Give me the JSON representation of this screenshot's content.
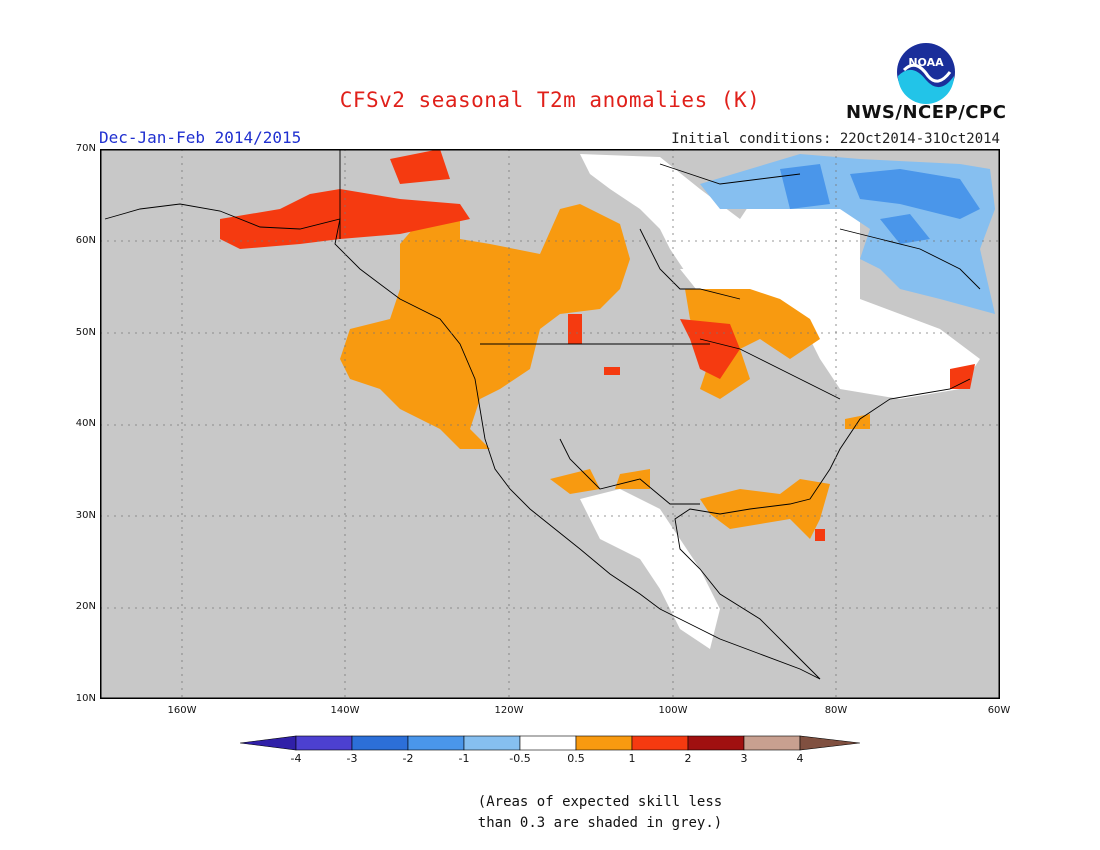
{
  "title": "CFSv2 seasonal T2m anomalies (K)",
  "season": "Dec-Jan-Feb 2014/2015",
  "initial_conditions": "Initial conditions: 22Oct2014-31Oct2014",
  "agency": "NWS/NCEP/CPC",
  "logo_text": "NOAA",
  "y_ticks": [
    "70N",
    "60N",
    "50N",
    "40N",
    "30N",
    "20N",
    "10N"
  ],
  "x_ticks": [
    "160W",
    "140W",
    "120W",
    "100W",
    "80W",
    "60W"
  ],
  "colorbar": {
    "labels": [
      "-4",
      "-3",
      "-2",
      "-1",
      "-0.5",
      "0.5",
      "1",
      "2",
      "3",
      "4"
    ],
    "colors": [
      "#3020a8",
      "#4c40d0",
      "#2c6fd8",
      "#4a96ea",
      "#86bff0",
      "#ffffff",
      "#f89a10",
      "#f53a10",
      "#a01010",
      "#c8a090",
      "#805040"
    ]
  },
  "note_line1": "(Areas of expected skill less",
  "note_line2": "than 0.3 are shaded in grey.)",
  "map_colors": {
    "grey": "#c8c8c8",
    "white": "#ffffff",
    "orange": "#f89a10",
    "red": "#f53a10",
    "blue1": "#86bff0",
    "blue2": "#4a96ea"
  }
}
